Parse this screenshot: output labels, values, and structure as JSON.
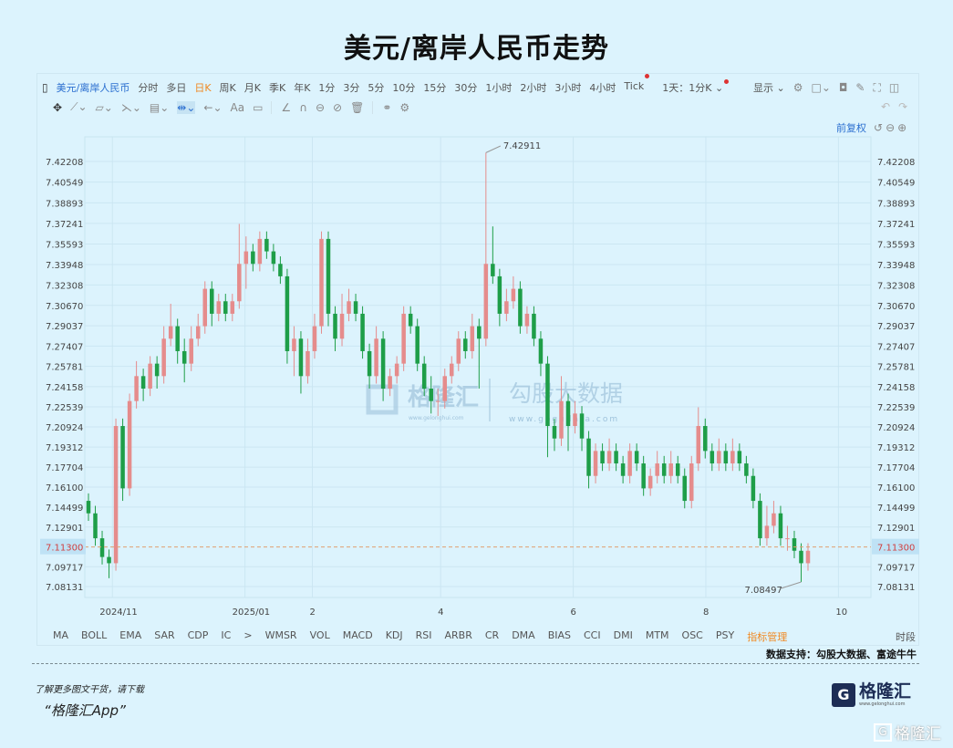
{
  "title": "美元/离岸人民币走势",
  "toolbar": {
    "symbol": "美元/离岸人民币",
    "periods": [
      "分时",
      "多日",
      "日K",
      "周K",
      "月K",
      "季K",
      "年K",
      "1分",
      "3分",
      "5分",
      "10分",
      "15分",
      "30分",
      "1小时",
      "2小时",
      "3小时",
      "4小时",
      "Tick"
    ],
    "selected_period": "日K",
    "range": "1天：1分K",
    "display": "显示",
    "adjust": "前复权"
  },
  "indicators": [
    "MA",
    "BOLL",
    "EMA",
    "SAR",
    "CDP",
    "IC",
    ">",
    "WMSR",
    "VOL",
    "MACD",
    "KDJ",
    "RSI",
    "ARBR",
    "CR",
    "DMA",
    "BIAS",
    "CCI",
    "DMI",
    "MTM",
    "OSC",
    "PSY"
  ],
  "indicator_manage": "指标管理",
  "time_segment": "时段",
  "source": "数据支持：勾股大数据、富途牛牛",
  "footer": {
    "line1": "了解更多图文干货，请下载",
    "line2": "“格隆汇App”",
    "logo": "格隆汇",
    "logo_url": "www.gelonghui.com",
    "watermark": "格隆汇"
  },
  "watermarks": {
    "left": "格隆汇",
    "left_url": "www.gelonghui.com",
    "right": "勾股大数据",
    "right_url": "www.gogudata.com"
  },
  "colors": {
    "up": "#e58c8c",
    "down": "#1e9e48",
    "background": "#dcf3fd",
    "last_price_line": "#e0a070",
    "accent": "#2b6fd0"
  },
  "chart_data": {
    "type": "candlestick",
    "title": "美元/离岸人民币走势",
    "y_ticks": [
      "7.42208",
      "7.40549",
      "7.38893",
      "7.37241",
      "7.35593",
      "7.33948",
      "7.32308",
      "7.30670",
      "7.29037",
      "7.27407",
      "7.25781",
      "7.24158",
      "7.22539",
      "7.20924",
      "7.19312",
      "7.17704",
      "7.16100",
      "7.14499",
      "7.12901",
      "7.09717",
      "7.08131"
    ],
    "ylim": [
      7.08131,
      7.42208
    ],
    "x_ticks": [
      {
        "label": "2024/11",
        "date": "2024-11-01"
      },
      {
        "label": "2025/01",
        "date": "2025-01-01"
      },
      {
        "label": "2",
        "date": "2025-02-01"
      },
      {
        "label": "4",
        "date": "2025-04-01"
      },
      {
        "label": "6",
        "date": "2025-06-01"
      },
      {
        "label": "8",
        "date": "2025-08-01"
      },
      {
        "label": "10",
        "date": "2025-10-01"
      }
    ],
    "first_candle_date": "2024-10-21",
    "last_candle_date": "2025-09-17",
    "last_price": "7.11300",
    "high_label": "7.42911",
    "low_label": "7.08497",
    "grid": true,
    "candles_ohlc": [
      [
        7.15,
        7.156,
        7.134,
        7.14
      ],
      [
        7.14,
        7.146,
        7.114,
        7.12
      ],
      [
        7.12,
        7.126,
        7.099,
        7.105
      ],
      [
        7.105,
        7.111,
        7.088,
        7.1
      ],
      [
        7.1,
        7.216,
        7.094,
        7.21
      ],
      [
        7.21,
        7.216,
        7.15,
        7.16
      ],
      [
        7.16,
        7.236,
        7.154,
        7.23
      ],
      [
        7.23,
        7.262,
        7.224,
        7.25
      ],
      [
        7.25,
        7.256,
        7.23,
        7.24
      ],
      [
        7.24,
        7.266,
        7.234,
        7.26
      ],
      [
        7.26,
        7.266,
        7.24,
        7.25
      ],
      [
        7.25,
        7.29,
        7.244,
        7.28
      ],
      [
        7.28,
        7.308,
        7.274,
        7.29
      ],
      [
        7.29,
        7.296,
        7.26,
        7.27
      ],
      [
        7.27,
        7.28,
        7.245,
        7.26
      ],
      [
        7.26,
        7.29,
        7.254,
        7.28
      ],
      [
        7.28,
        7.3,
        7.274,
        7.29
      ],
      [
        7.29,
        7.326,
        7.284,
        7.32
      ],
      [
        7.32,
        7.326,
        7.29,
        7.3
      ],
      [
        7.3,
        7.316,
        7.294,
        7.31
      ],
      [
        7.31,
        7.316,
        7.294,
        7.3
      ],
      [
        7.3,
        7.316,
        7.294,
        7.31
      ],
      [
        7.31,
        7.372,
        7.304,
        7.34
      ],
      [
        7.34,
        7.362,
        7.32,
        7.35
      ],
      [
        7.35,
        7.356,
        7.334,
        7.34
      ],
      [
        7.34,
        7.366,
        7.334,
        7.36
      ],
      [
        7.36,
        7.366,
        7.344,
        7.35
      ],
      [
        7.35,
        7.356,
        7.334,
        7.34
      ],
      [
        7.34,
        7.346,
        7.324,
        7.33
      ],
      [
        7.33,
        7.336,
        7.26,
        7.27
      ],
      [
        7.27,
        7.29,
        7.25,
        7.28
      ],
      [
        7.28,
        7.286,
        7.236,
        7.25
      ],
      [
        7.25,
        7.28,
        7.244,
        7.27
      ],
      [
        7.27,
        7.3,
        7.264,
        7.29
      ],
      [
        7.29,
        7.366,
        7.284,
        7.36
      ],
      [
        7.36,
        7.366,
        7.29,
        7.3
      ],
      [
        7.3,
        7.306,
        7.27,
        7.28
      ],
      [
        7.28,
        7.316,
        7.274,
        7.3
      ],
      [
        7.3,
        7.32,
        7.294,
        7.31
      ],
      [
        7.31,
        7.316,
        7.294,
        7.3
      ],
      [
        7.3,
        7.306,
        7.264,
        7.27
      ],
      [
        7.27,
        7.276,
        7.24,
        7.25
      ],
      [
        7.25,
        7.29,
        7.244,
        7.28
      ],
      [
        7.28,
        7.286,
        7.23,
        7.24
      ],
      [
        7.24,
        7.256,
        7.234,
        7.25
      ],
      [
        7.25,
        7.266,
        7.244,
        7.26
      ],
      [
        7.26,
        7.306,
        7.254,
        7.3
      ],
      [
        7.3,
        7.306,
        7.284,
        7.29
      ],
      [
        7.29,
        7.296,
        7.254,
        7.26
      ],
      [
        7.26,
        7.266,
        7.234,
        7.24
      ],
      [
        7.24,
        7.25,
        7.22,
        7.23
      ],
      [
        7.23,
        7.24,
        7.218,
        7.23
      ],
      [
        7.23,
        7.256,
        7.224,
        7.25
      ],
      [
        7.25,
        7.266,
        7.244,
        7.26
      ],
      [
        7.26,
        7.286,
        7.254,
        7.28
      ],
      [
        7.28,
        7.286,
        7.264,
        7.27
      ],
      [
        7.27,
        7.3,
        7.264,
        7.29
      ],
      [
        7.29,
        7.296,
        7.24,
        7.28
      ],
      [
        7.28,
        7.42911,
        7.274,
        7.34
      ],
      [
        7.34,
        7.37,
        7.324,
        7.33
      ],
      [
        7.33,
        7.336,
        7.29,
        7.3
      ],
      [
        7.3,
        7.32,
        7.294,
        7.31
      ],
      [
        7.31,
        7.33,
        7.304,
        7.32
      ],
      [
        7.32,
        7.326,
        7.284,
        7.29
      ],
      [
        7.29,
        7.306,
        7.284,
        7.3
      ],
      [
        7.3,
        7.306,
        7.274,
        7.28
      ],
      [
        7.28,
        7.286,
        7.25,
        7.26
      ],
      [
        7.26,
        7.266,
        7.185,
        7.21
      ],
      [
        7.21,
        7.216,
        7.19,
        7.2
      ],
      [
        7.2,
        7.25,
        7.194,
        7.23
      ],
      [
        7.23,
        7.236,
        7.19,
        7.21
      ],
      [
        7.21,
        7.23,
        7.204,
        7.22
      ],
      [
        7.22,
        7.226,
        7.19,
        7.2
      ],
      [
        7.2,
        7.206,
        7.16,
        7.17
      ],
      [
        7.17,
        7.196,
        7.164,
        7.19
      ],
      [
        7.19,
        7.196,
        7.174,
        7.18
      ],
      [
        7.18,
        7.2,
        7.174,
        7.19
      ],
      [
        7.19,
        7.196,
        7.174,
        7.18
      ],
      [
        7.18,
        7.186,
        7.164,
        7.17
      ],
      [
        7.17,
        7.196,
        7.164,
        7.19
      ],
      [
        7.19,
        7.196,
        7.174,
        7.18
      ],
      [
        7.18,
        7.186,
        7.154,
        7.16
      ],
      [
        7.16,
        7.176,
        7.154,
        7.17
      ],
      [
        7.17,
        7.19,
        7.164,
        7.18
      ],
      [
        7.18,
        7.186,
        7.164,
        7.17
      ],
      [
        7.17,
        7.19,
        7.164,
        7.18
      ],
      [
        7.18,
        7.186,
        7.164,
        7.17
      ],
      [
        7.17,
        7.176,
        7.144,
        7.15
      ],
      [
        7.15,
        7.186,
        7.144,
        7.18
      ],
      [
        7.18,
        7.225,
        7.174,
        7.21
      ],
      [
        7.21,
        7.216,
        7.184,
        7.19
      ],
      [
        7.19,
        7.196,
        7.174,
        7.18
      ],
      [
        7.18,
        7.2,
        7.174,
        7.19
      ],
      [
        7.19,
        7.196,
        7.174,
        7.18
      ],
      [
        7.18,
        7.2,
        7.174,
        7.19
      ],
      [
        7.19,
        7.196,
        7.174,
        7.18
      ],
      [
        7.18,
        7.186,
        7.164,
        7.17
      ],
      [
        7.17,
        7.176,
        7.144,
        7.15
      ],
      [
        7.15,
        7.156,
        7.114,
        7.12
      ],
      [
        7.12,
        7.146,
        7.114,
        7.13
      ],
      [
        7.13,
        7.15,
        7.124,
        7.14
      ],
      [
        7.14,
        7.146,
        7.114,
        7.12
      ],
      [
        7.12,
        7.13,
        7.11,
        7.12
      ],
      [
        7.12,
        7.126,
        7.104,
        7.11
      ],
      [
        7.11,
        7.116,
        7.08497,
        7.1
      ],
      [
        7.1,
        7.116,
        7.094,
        7.11
      ]
    ]
  }
}
